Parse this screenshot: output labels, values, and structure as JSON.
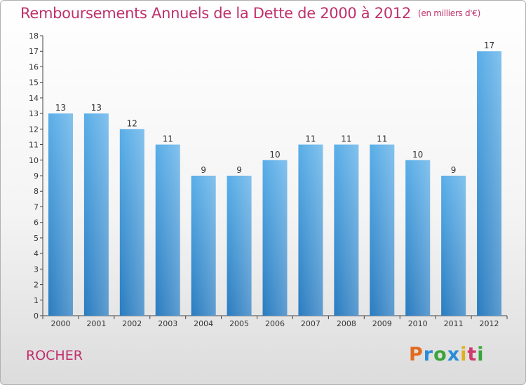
{
  "title": "Remboursements Annuels de la Dette de 2000 à 2012",
  "unit": "(en milliers d'€)",
  "commune": "ROCHER",
  "logo": [
    "P",
    "r",
    "o",
    "x",
    "i",
    "t",
    "i"
  ],
  "colors": {
    "bar": "#3d9de0",
    "title": "#c0306a"
  },
  "chart_data": {
    "type": "bar",
    "title": "Remboursements Annuels de la Dette de 2000 à 2012",
    "subtitle": "(en milliers d'€)",
    "categories": [
      "2000",
      "2001",
      "2002",
      "2003",
      "2004",
      "2005",
      "2006",
      "2007",
      "2008",
      "2009",
      "2010",
      "2011",
      "2012"
    ],
    "values": [
      13,
      13,
      12,
      11,
      9,
      9,
      10,
      11,
      11,
      11,
      10,
      9,
      17
    ],
    "data_labels": [
      "13",
      "13",
      "12",
      "11",
      "9",
      "9",
      "10",
      "11",
      "11",
      "11",
      "10",
      "9",
      "17"
    ],
    "ylim": [
      0,
      18
    ],
    "yticks": [
      "0",
      "1",
      "2",
      "3",
      "4",
      "5",
      "6",
      "7",
      "8",
      "9",
      "10",
      "11",
      "12",
      "13",
      "14",
      "15",
      "16",
      "17",
      "18"
    ],
    "xlabel": "",
    "ylabel": "",
    "grid": false,
    "legend": "none"
  }
}
